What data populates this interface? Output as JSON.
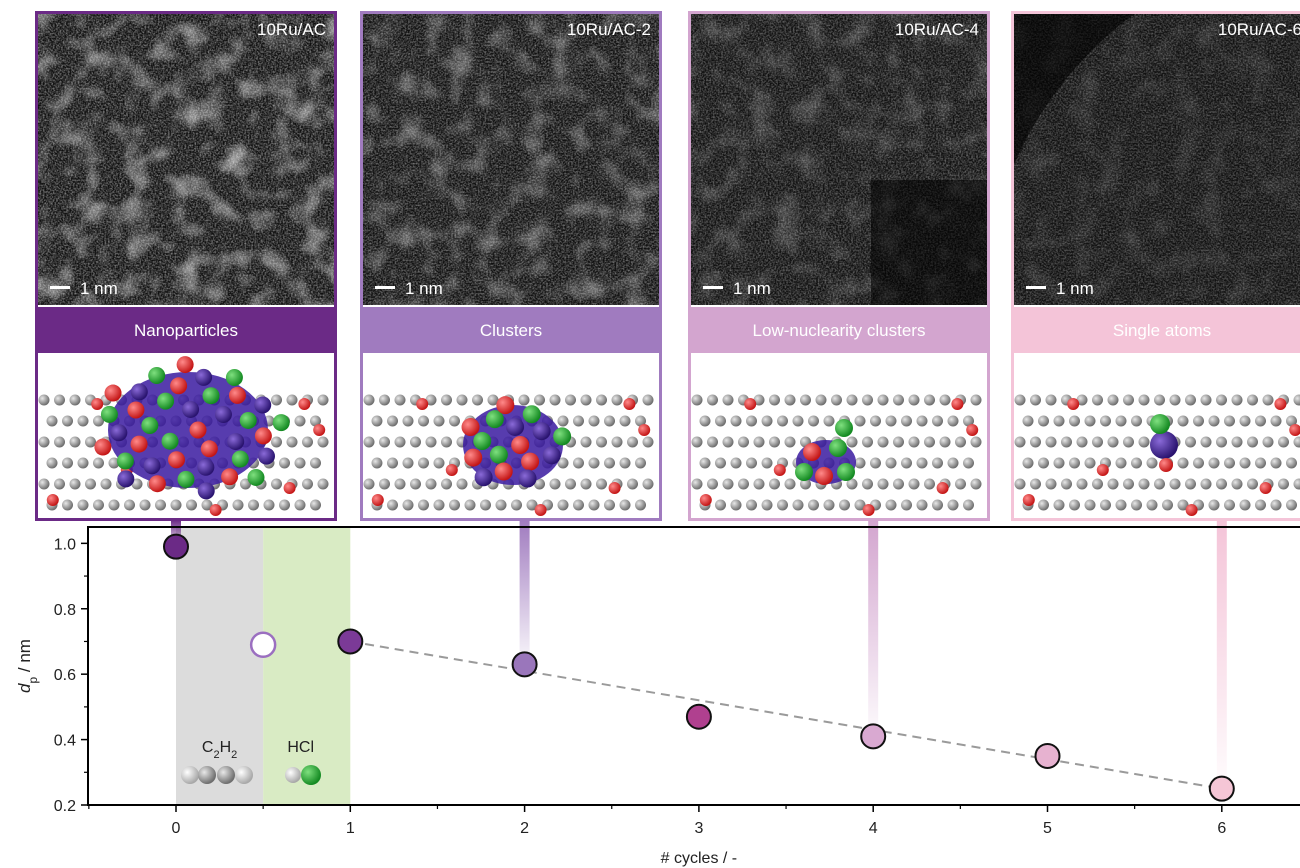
{
  "panels": [
    {
      "sample": "10Ru/AC",
      "scale_bar": "1 nm",
      "category": "Nanoparticles",
      "color": "#6b2a86",
      "cycle": 0,
      "mode": "np"
    },
    {
      "sample": "10Ru/AC-2",
      "scale_bar": "1 nm",
      "category": "Clusters",
      "color": "#a07bbf",
      "cycle": 2,
      "mode": "cluster"
    },
    {
      "sample": "10Ru/AC-4",
      "scale_bar": "1 nm",
      "category": "Low-nuclearity clusters",
      "color": "#d3a5cf",
      "cycle": 4,
      "mode": "low"
    },
    {
      "sample": "10Ru/AC-6",
      "scale_bar": "1 nm",
      "category": "Single atoms",
      "color": "#f4c4d8",
      "cycle": 6,
      "mode": "single"
    }
  ],
  "chart_data": {
    "type": "scatter",
    "xlabel": "# cycles / -",
    "ylabel_main": "d",
    "ylabel_sub": "p",
    "ylabel_unit": " / nm",
    "xlim": [
      -0.5,
      6.5
    ],
    "ylim": [
      0.2,
      1.05
    ],
    "xticks": [
      0,
      1,
      2,
      3,
      4,
      5,
      6
    ],
    "yticks": [
      0.2,
      0.4,
      0.6,
      0.8,
      1.0
    ],
    "ytick_labels": [
      "0.2",
      "0.4",
      "0.6",
      "0.8",
      "1.0"
    ],
    "points": [
      {
        "x": 0,
        "y": 0.99,
        "color": "#6b2a86",
        "hollow": false
      },
      {
        "x": 0.5,
        "y": 0.69,
        "color": "#9b6fc0",
        "hollow": true
      },
      {
        "x": 1,
        "y": 0.7,
        "color": "#7b3a97",
        "hollow": false
      },
      {
        "x": 2,
        "y": 0.63,
        "color": "#9a76bb",
        "hollow": false
      },
      {
        "x": 3,
        "y": 0.47,
        "color": "#b0408f",
        "hollow": false
      },
      {
        "x": 4,
        "y": 0.41,
        "color": "#d9a9d1",
        "hollow": false
      },
      {
        "x": 5,
        "y": 0.35,
        "color": "#e7b2d0",
        "hollow": false
      },
      {
        "x": 6,
        "y": 0.25,
        "color": "#f5c6d6",
        "hollow": false
      }
    ],
    "trend_line": {
      "x": [
        1,
        6
      ],
      "y": [
        0.7,
        0.25
      ],
      "style": "dashed",
      "color": "#9a9a9a"
    },
    "shaded_regions": [
      {
        "x0": 0,
        "x1": 0.5,
        "color": "#dcdcdc",
        "label_main": "C",
        "label_sub1": "2",
        "label_mid": "H",
        "label_sub2": "2"
      },
      {
        "x0": 0.5,
        "x1": 1,
        "color": "#d9ebc4",
        "label_main": "HCl",
        "label_sub1": "",
        "label_mid": "",
        "label_sub2": ""
      }
    ]
  }
}
